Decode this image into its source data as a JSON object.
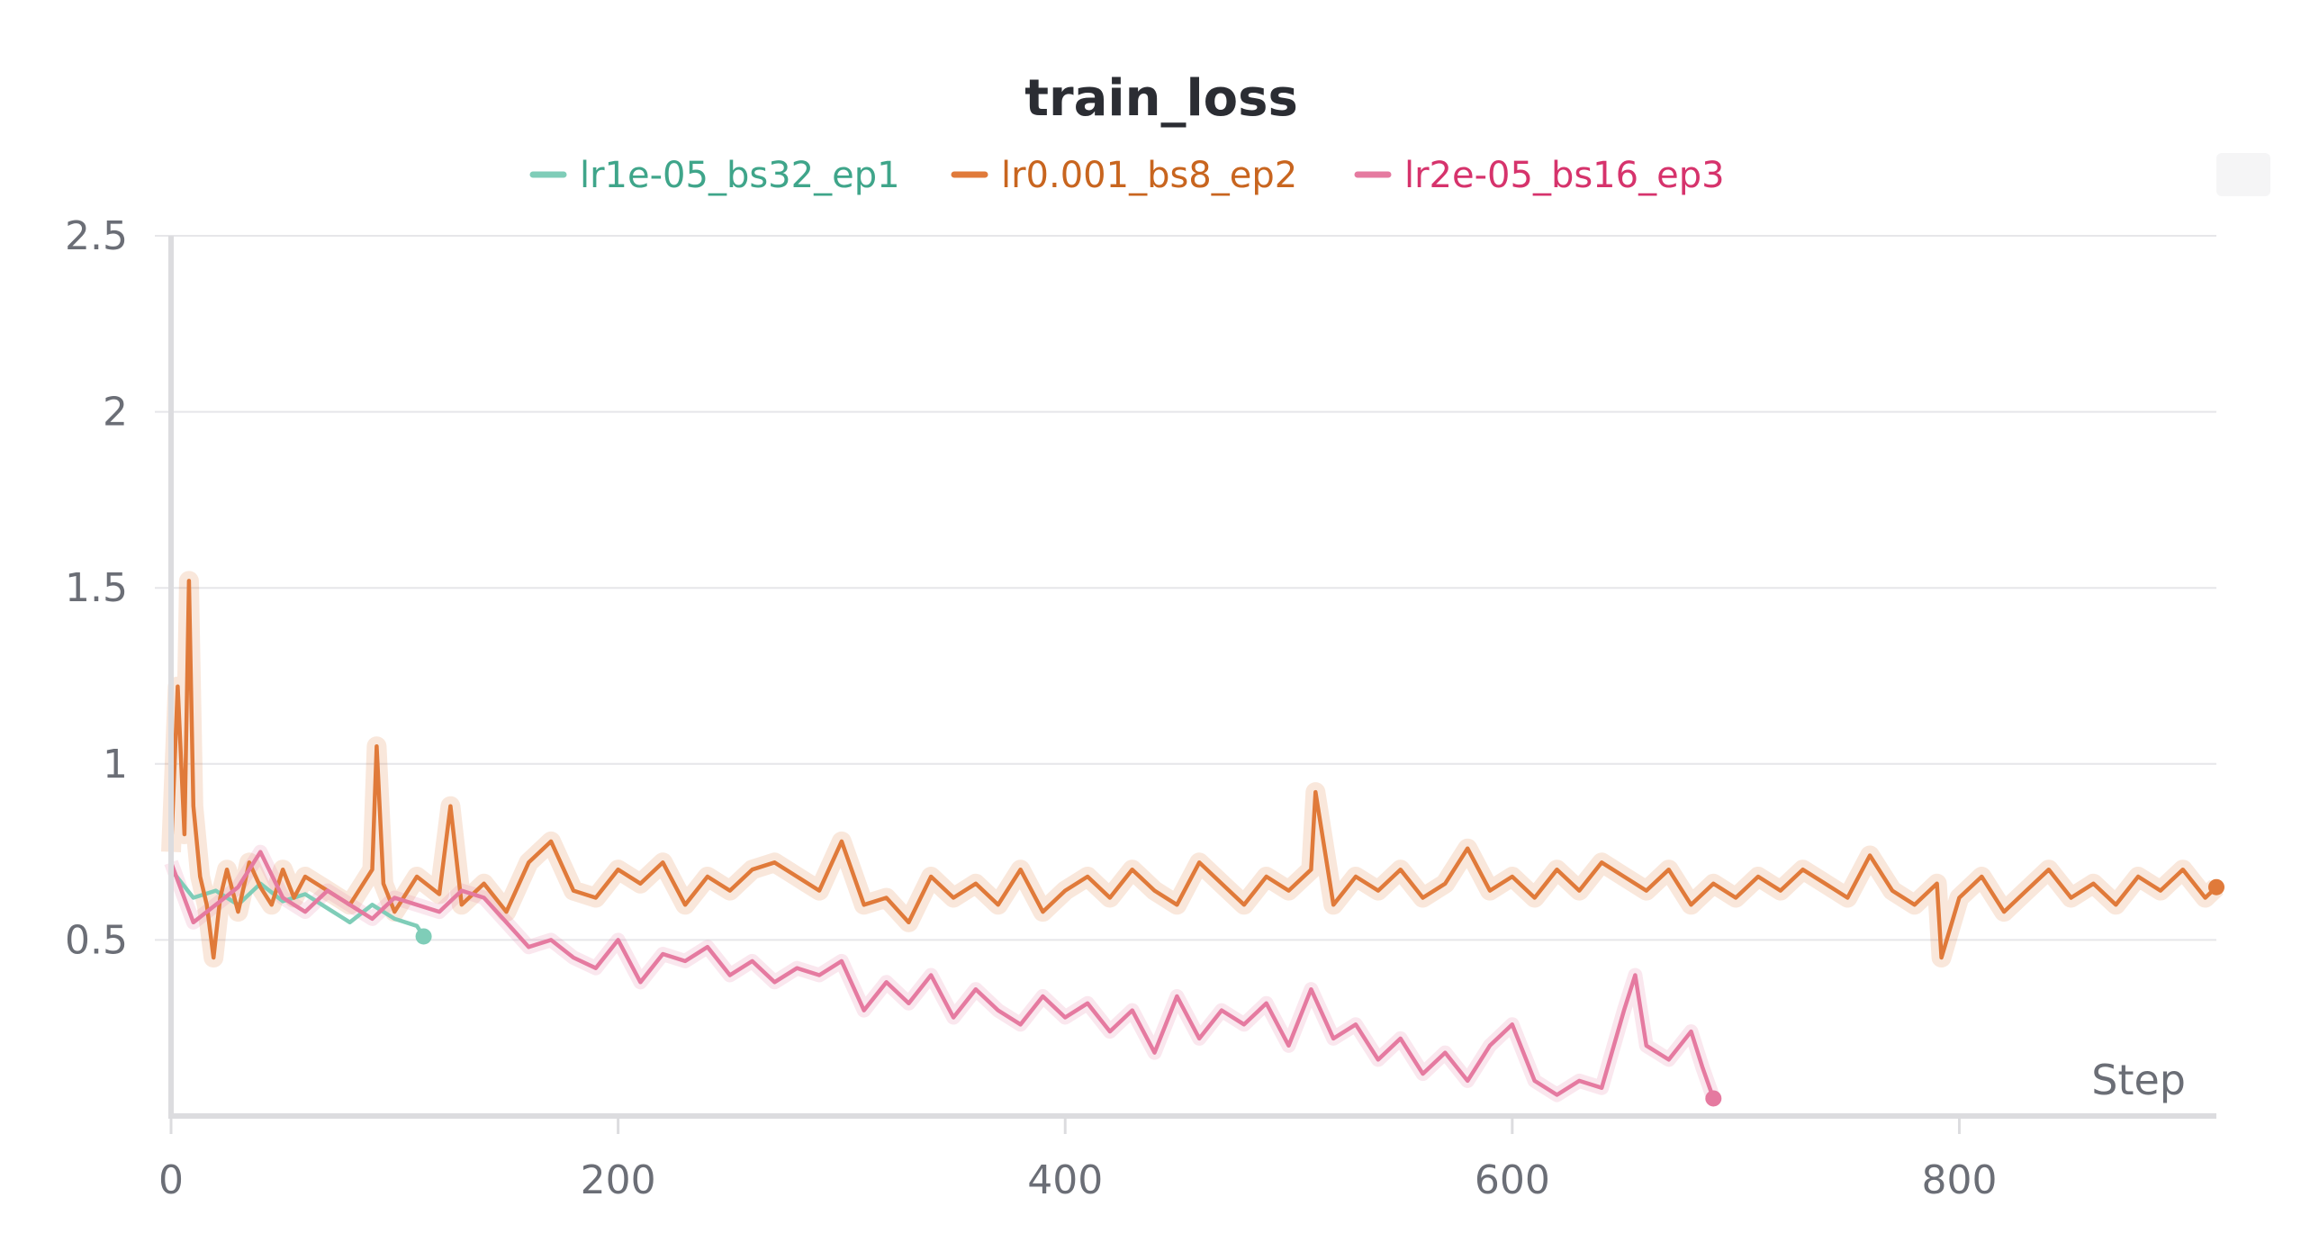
{
  "chart_data": {
    "type": "line",
    "title": "train_loss",
    "xlabel": "Step",
    "ylabel": "",
    "xlim": [
      0,
      915
    ],
    "ylim": [
      0,
      2.5
    ],
    "x_ticks": [
      0,
      200,
      400,
      600,
      800
    ],
    "x_tick_labels": [
      "0",
      "200",
      "400",
      "600",
      "800"
    ],
    "y_ticks": [
      0.5,
      1,
      1.5,
      2,
      2.5
    ],
    "y_tick_labels": [
      "0.5",
      "1",
      "1.5",
      "2",
      "2.5"
    ],
    "grid": true,
    "legend_position": "top-center",
    "series": [
      {
        "name": "lr1e-05_bs32_ep1",
        "color": "#7fcdb8",
        "text_color": "#3fa58a",
        "x": [
          0,
          10,
          20,
          30,
          40,
          50,
          60,
          70,
          80,
          90,
          100,
          110,
          113
        ],
        "y": [
          0.7,
          0.62,
          0.64,
          0.6,
          0.66,
          0.61,
          0.63,
          0.59,
          0.55,
          0.6,
          0.56,
          0.54,
          0.51
        ]
      },
      {
        "name": "lr0.001_bs8_ep2",
        "color": "#e07a3a",
        "text_color": "#c8651f",
        "x": [
          0,
          3,
          6,
          8,
          10,
          13,
          16,
          19,
          22,
          25,
          30,
          35,
          40,
          45,
          50,
          55,
          60,
          70,
          80,
          90,
          92,
          95,
          100,
          110,
          120,
          125,
          130,
          140,
          150,
          160,
          170,
          180,
          190,
          200,
          210,
          220,
          230,
          240,
          250,
          260,
          270,
          280,
          290,
          300,
          310,
          320,
          330,
          340,
          350,
          360,
          370,
          380,
          390,
          400,
          410,
          420,
          430,
          440,
          450,
          460,
          470,
          480,
          490,
          500,
          510,
          512,
          520,
          530,
          540,
          550,
          560,
          570,
          580,
          590,
          600,
          610,
          620,
          630,
          640,
          650,
          660,
          670,
          680,
          690,
          700,
          710,
          720,
          730,
          740,
          750,
          760,
          770,
          780,
          790,
          792,
          800,
          810,
          820,
          830,
          840,
          850,
          860,
          870,
          880,
          890,
          900,
          910,
          915
        ],
        "y": [
          0.75,
          1.22,
          0.8,
          1.52,
          0.88,
          0.68,
          0.6,
          0.45,
          0.62,
          0.7,
          0.58,
          0.72,
          0.65,
          0.6,
          0.7,
          0.62,
          0.68,
          0.64,
          0.6,
          0.7,
          1.05,
          0.66,
          0.58,
          0.68,
          0.63,
          0.88,
          0.6,
          0.66,
          0.58,
          0.72,
          0.78,
          0.64,
          0.62,
          0.7,
          0.66,
          0.72,
          0.6,
          0.68,
          0.64,
          0.7,
          0.72,
          0.68,
          0.64,
          0.78,
          0.6,
          0.62,
          0.55,
          0.68,
          0.62,
          0.66,
          0.6,
          0.7,
          0.58,
          0.64,
          0.68,
          0.62,
          0.7,
          0.64,
          0.6,
          0.72,
          0.66,
          0.6,
          0.68,
          0.64,
          0.7,
          0.92,
          0.6,
          0.68,
          0.64,
          0.7,
          0.62,
          0.66,
          0.76,
          0.64,
          0.68,
          0.62,
          0.7,
          0.64,
          0.72,
          0.68,
          0.64,
          0.7,
          0.6,
          0.66,
          0.62,
          0.68,
          0.64,
          0.7,
          0.66,
          0.62,
          0.74,
          0.64,
          0.6,
          0.66,
          0.45,
          0.62,
          0.68,
          0.58,
          0.64,
          0.7,
          0.62,
          0.66,
          0.6,
          0.68,
          0.64,
          0.7,
          0.62,
          0.65
        ]
      },
      {
        "name": "lr2e-05_bs16_ep3",
        "color": "#e57aa0",
        "text_color": "#d6336c",
        "x": [
          0,
          10,
          20,
          30,
          40,
          50,
          60,
          70,
          80,
          90,
          100,
          110,
          120,
          130,
          140,
          150,
          160,
          170,
          180,
          190,
          200,
          210,
          220,
          230,
          240,
          250,
          260,
          270,
          280,
          290,
          300,
          310,
          320,
          330,
          340,
          350,
          360,
          370,
          380,
          390,
          400,
          410,
          420,
          430,
          440,
          450,
          460,
          470,
          480,
          490,
          500,
          510,
          520,
          530,
          540,
          550,
          560,
          570,
          580,
          590,
          600,
          610,
          620,
          630,
          640,
          650,
          655,
          660,
          670,
          680,
          685,
          690
        ],
        "y": [
          0.72,
          0.55,
          0.6,
          0.65,
          0.75,
          0.62,
          0.58,
          0.64,
          0.6,
          0.56,
          0.62,
          0.6,
          0.58,
          0.64,
          0.62,
          0.55,
          0.48,
          0.5,
          0.45,
          0.42,
          0.5,
          0.38,
          0.46,
          0.44,
          0.48,
          0.4,
          0.44,
          0.38,
          0.42,
          0.4,
          0.44,
          0.3,
          0.38,
          0.32,
          0.4,
          0.28,
          0.36,
          0.3,
          0.26,
          0.34,
          0.28,
          0.32,
          0.24,
          0.3,
          0.18,
          0.34,
          0.22,
          0.3,
          0.26,
          0.32,
          0.2,
          0.36,
          0.22,
          0.26,
          0.16,
          0.22,
          0.12,
          0.18,
          0.1,
          0.2,
          0.26,
          0.1,
          0.06,
          0.1,
          0.08,
          0.3,
          0.4,
          0.2,
          0.16,
          0.24,
          0.14,
          0.05
        ]
      }
    ]
  }
}
